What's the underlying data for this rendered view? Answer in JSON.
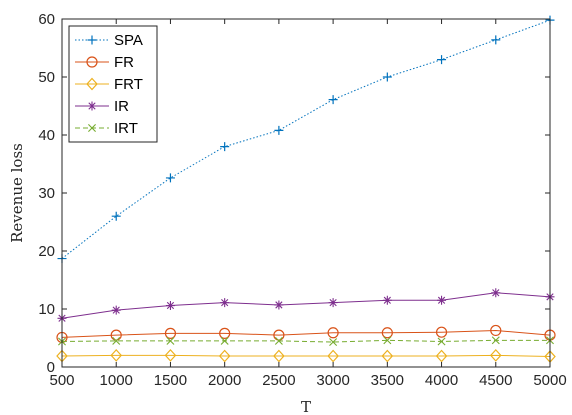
{
  "chart_data": {
    "type": "line",
    "title": "",
    "xlabel": "T",
    "ylabel": "Revenue loss",
    "x": [
      500,
      1000,
      1500,
      2000,
      2500,
      3000,
      3500,
      4000,
      4500,
      5000
    ],
    "xlim": [
      500,
      5000
    ],
    "ylim": [
      0,
      60
    ],
    "xticks": [
      "500",
      "1000",
      "1500",
      "2000",
      "2500",
      "3000",
      "3500",
      "4000",
      "4500",
      "5000"
    ],
    "yticks": [
      "0",
      "10",
      "20",
      "30",
      "40",
      "50",
      "60"
    ],
    "grid": false,
    "legend_position": "top-left",
    "series": [
      {
        "name": "SPA",
        "color": "#0072BD",
        "marker": "plus",
        "line": "dotted",
        "values": [
          18.7,
          26.0,
          32.6,
          38.0,
          40.8,
          46.1,
          50.0,
          53.0,
          56.4,
          59.8
        ]
      },
      {
        "name": "FR",
        "color": "#D95319",
        "marker": "circle",
        "line": "solid",
        "values": [
          5.1,
          5.5,
          5.8,
          5.8,
          5.5,
          5.9,
          5.9,
          6.0,
          6.3,
          5.5
        ]
      },
      {
        "name": "FRT",
        "color": "#EDB120",
        "marker": "diamond",
        "line": "solid",
        "values": [
          1.9,
          2.0,
          2.0,
          1.9,
          1.9,
          1.9,
          1.9,
          1.9,
          2.0,
          1.8
        ]
      },
      {
        "name": "IR",
        "color": "#7E2F8E",
        "marker": "star",
        "line": "solid",
        "values": [
          8.4,
          9.8,
          10.6,
          11.1,
          10.7,
          11.1,
          11.5,
          11.5,
          12.8,
          12.1
        ]
      },
      {
        "name": "IRT",
        "color": "#77AC30",
        "marker": "x",
        "line": "dashed",
        "values": [
          4.4,
          4.5,
          4.5,
          4.5,
          4.5,
          4.3,
          4.6,
          4.4,
          4.6,
          4.6
        ]
      }
    ]
  }
}
